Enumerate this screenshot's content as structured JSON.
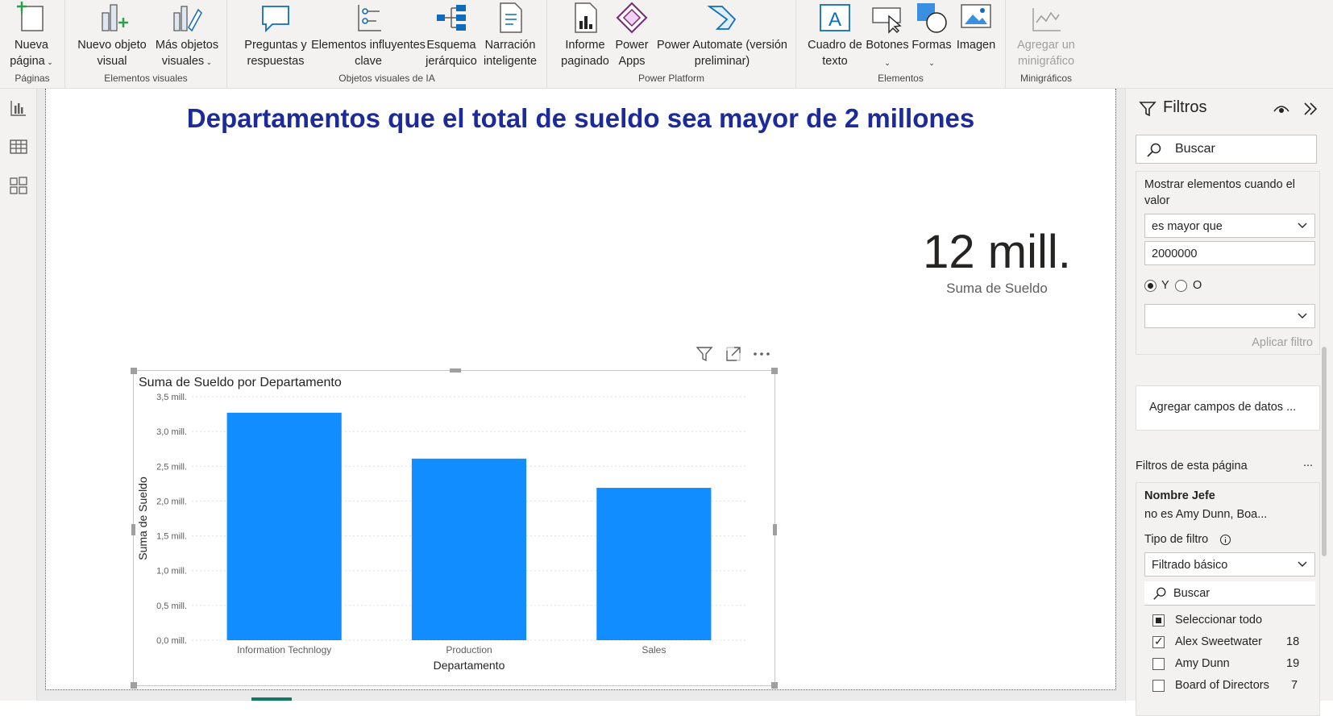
{
  "ribbon": {
    "groups": [
      {
        "label": "Páginas",
        "buttons": [
          {
            "label": "Nueva\npágina",
            "icon": "new-page-icon",
            "caret": true
          }
        ]
      },
      {
        "label": "Elementos visuales",
        "buttons": [
          {
            "label": "Nuevo objeto\nvisual",
            "icon": "new-visual-icon"
          },
          {
            "label": "Más objetos\nvisuales",
            "icon": "more-visuals-icon",
            "caret": true
          }
        ]
      },
      {
        "label": "Objetos visuales de IA",
        "buttons": [
          {
            "label": "Preguntas y\nrespuestas",
            "icon": "qa-icon"
          },
          {
            "label": "Elementos influyentes\nclave",
            "icon": "key-influencers-icon"
          },
          {
            "label": "Esquema\njerárquico",
            "icon": "decomposition-tree-icon"
          },
          {
            "label": "Narración\ninteligente",
            "icon": "smart-narrative-icon"
          }
        ]
      },
      {
        "label": "Power Platform",
        "buttons": [
          {
            "label": "Informe\npaginado",
            "icon": "paginated-report-icon"
          },
          {
            "label": "Power\nApps",
            "icon": "power-apps-icon"
          },
          {
            "label": "Power Automate (versión\npreliminar)",
            "icon": "power-automate-icon"
          }
        ]
      },
      {
        "label": "Elementos",
        "buttons": [
          {
            "label": "Cuadro de\ntexto",
            "icon": "text-box-icon"
          },
          {
            "label": "Botones",
            "icon": "buttons-icon",
            "caret": true
          },
          {
            "label": "Formas",
            "icon": "shapes-icon",
            "caret": true
          },
          {
            "label": "Imagen",
            "icon": "image-icon"
          }
        ]
      },
      {
        "label": "Minigráficos",
        "buttons": [
          {
            "label": "Agregar un\nminigráfico",
            "icon": "sparkline-icon",
            "disabled": true
          }
        ]
      }
    ]
  },
  "report": {
    "title": "Departamentos que el total de sueldo sea mayor de 2 millones",
    "card": {
      "value": "12 mill.",
      "label": "Suma de Sueldo"
    }
  },
  "chart_data": {
    "type": "bar",
    "title": "Suma de Sueldo por Departamento",
    "xlabel": "Departamento",
    "ylabel": "Suma de Sueldo",
    "categories": [
      "Information Technlogy",
      "Production",
      "Sales"
    ],
    "values": [
      3.27,
      2.61,
      2.19
    ],
    "ylim": [
      0,
      3.5
    ],
    "yticks": [
      0,
      0.5,
      1.0,
      1.5,
      2.0,
      2.5,
      3.0,
      3.5
    ],
    "ytick_labels": [
      "0,0 mill.",
      "0,5 mill.",
      "1,0 mill.",
      "1,5 mill.",
      "2,0 mill.",
      "2,5 mill.",
      "3,0 mill.",
      "3,5 mill."
    ],
    "grid": true,
    "color": "#118dff"
  },
  "filters": {
    "title": "Filtros",
    "search_placeholder": "Buscar",
    "visual_filter": {
      "condition_label": "Mostrar elementos cuando el valor",
      "operator": "es mayor que",
      "value": "2000000",
      "and_label": "Y",
      "or_label": "O",
      "second_operator": "",
      "apply_label": "Aplicar filtro"
    },
    "add_fields_label": "Agregar campos de datos ...",
    "page_filters_label": "Filtros de esta página",
    "page_filters_more": "...",
    "page_filter": {
      "field": "Nombre Jefe",
      "summary": "no es Amy Dunn, Boa...",
      "filter_type_label": "Tipo de filtro",
      "filter_type": "Filtrado básico",
      "search_placeholder": "Buscar",
      "select_all": "Seleccionar todo",
      "items": [
        {
          "label": "Alex Sweetwater",
          "count": "18",
          "checked": true
        },
        {
          "label": "Amy Dunn",
          "count": "19",
          "checked": false
        },
        {
          "label": "Board of Directors",
          "count": "7",
          "checked": false
        }
      ]
    }
  }
}
